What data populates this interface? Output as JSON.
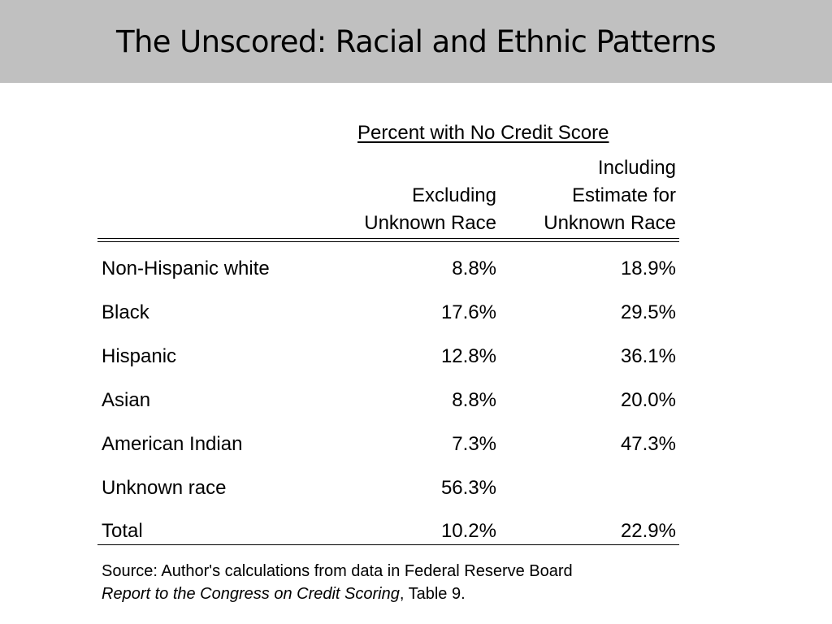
{
  "title": "The Unscored: Racial and Ethnic Patterns",
  "table": {
    "group_header": "Percent with No Credit Score",
    "columns": [
      {
        "lines": [
          "Excluding",
          "Unknown Race"
        ]
      },
      {
        "lines": [
          "Including",
          "Estimate for",
          "Unknown Race"
        ]
      }
    ],
    "rows": [
      {
        "label": "Non-Hispanic white",
        "excluding": "8.8%",
        "including": "18.9%"
      },
      {
        "label": "Black",
        "excluding": "17.6%",
        "including": "29.5%"
      },
      {
        "label": "Hispanic",
        "excluding": "12.8%",
        "including": "36.1%"
      },
      {
        "label": "Asian",
        "excluding": "8.8%",
        "including": "20.0%"
      },
      {
        "label": "American Indian",
        "excluding": "7.3%",
        "including": "47.3%"
      },
      {
        "label": "Unknown race",
        "excluding": "56.3%",
        "including": ""
      },
      {
        "label": "Total",
        "excluding": "10.2%",
        "including": "22.9%"
      }
    ]
  },
  "source": {
    "line1": "Source: Author's calculations from data in Federal Reserve Board",
    "line2_italic": "Report to the Congress on Credit Scoring",
    "line2_rest": ", Table 9."
  }
}
